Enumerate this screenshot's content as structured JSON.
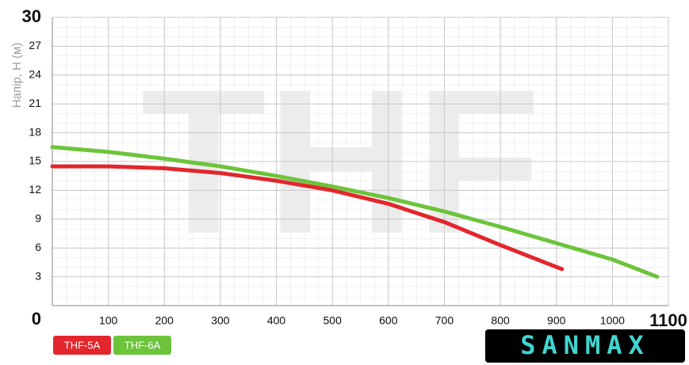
{
  "chart_data": {
    "type": "line",
    "y_label": "Напір, Н (м)",
    "watermark": "THF",
    "brand": "SANMAX",
    "xlim": [
      0,
      1100
    ],
    "xticks": [
      0,
      100,
      200,
      300,
      400,
      500,
      600,
      700,
      800,
      900,
      1000,
      1100
    ],
    "ylim": [
      0,
      30
    ],
    "yticks": [
      0,
      3,
      6,
      9,
      12,
      15,
      18,
      21,
      24,
      27,
      30
    ],
    "grid": true,
    "series": [
      {
        "name": "THF-5A",
        "color": "#e3262d",
        "x": [
          0,
          100,
          200,
          300,
          400,
          500,
          600,
          700,
          800,
          910
        ],
        "values": [
          14.5,
          14.5,
          14.3,
          13.8,
          13.0,
          12.0,
          10.6,
          8.7,
          6.3,
          3.8
        ]
      },
      {
        "name": "THF-6A",
        "color": "#6cc43a",
        "x": [
          0,
          100,
          200,
          300,
          400,
          500,
          600,
          700,
          800,
          900,
          1000,
          1080
        ],
        "values": [
          16.5,
          16.0,
          15.3,
          14.5,
          13.5,
          12.4,
          11.2,
          9.8,
          8.2,
          6.5,
          4.8,
          3.0
        ]
      }
    ]
  }
}
